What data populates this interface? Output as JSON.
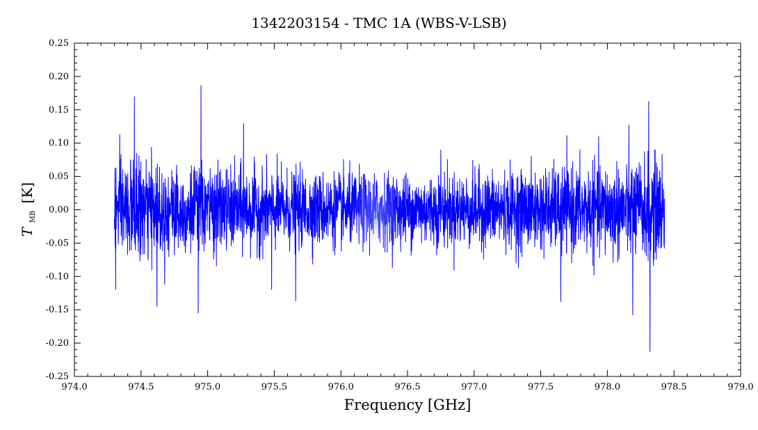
{
  "chart_data": {
    "type": "line",
    "title": "1342203154 - TMC 1A (WBS-V-LSB)",
    "xlabel": "Frequency [GHz]",
    "ylabel_symbol": "T",
    "ylabel_subscript": "MB",
    "ylabel_unit": "[K]",
    "xlim": [
      974.0,
      979.0
    ],
    "ylim": [
      -0.25,
      0.25
    ],
    "x_ticks": [
      "974.0",
      "974.5",
      "975.0",
      "975.5",
      "976.0",
      "976.5",
      "977.0",
      "977.5",
      "978.0",
      "978.5",
      "979.0"
    ],
    "y_ticks": [
      "-0.25",
      "-0.20",
      "-0.15",
      "-0.10",
      "-0.05",
      "0.00",
      "0.05",
      "0.10",
      "0.15",
      "0.20",
      "0.25"
    ],
    "grid": false,
    "legend": "none",
    "series": [
      {
        "color": "#0000ff",
        "x_start": 974.3,
        "x_end": 978.43,
        "noise_rms": 0.035,
        "mean": 0.0,
        "spikes": [
          {
            "x": 974.31,
            "y": -0.12
          },
          {
            "x": 974.45,
            "y": 0.17
          },
          {
            "x": 974.62,
            "y": -0.145
          },
          {
            "x": 974.95,
            "y": 0.187
          },
          {
            "x": 974.93,
            "y": -0.155
          },
          {
            "x": 975.27,
            "y": 0.13
          },
          {
            "x": 975.48,
            "y": -0.12
          },
          {
            "x": 975.66,
            "y": -0.137
          },
          {
            "x": 976.75,
            "y": 0.09
          },
          {
            "x": 977.65,
            "y": -0.138
          },
          {
            "x": 978.19,
            "y": -0.158
          },
          {
            "x": 978.31,
            "y": 0.163
          },
          {
            "x": 978.32,
            "y": -0.213
          }
        ]
      }
    ]
  }
}
